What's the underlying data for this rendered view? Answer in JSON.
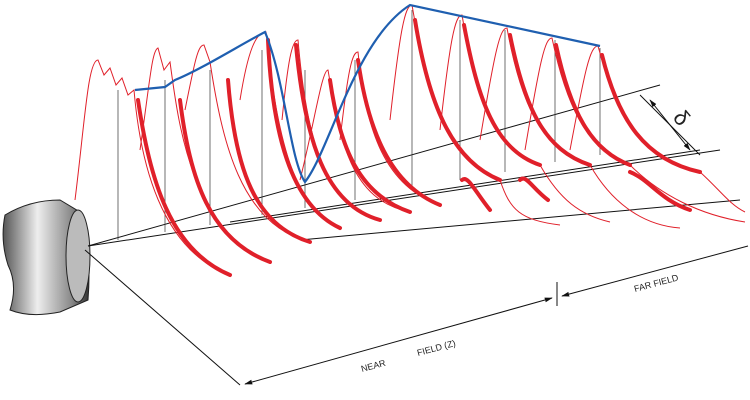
{
  "labels": {
    "near": "NEAR",
    "field": "FIELD (Z)",
    "far_field": "FAR FIELD",
    "delta": "δ"
  }
}
